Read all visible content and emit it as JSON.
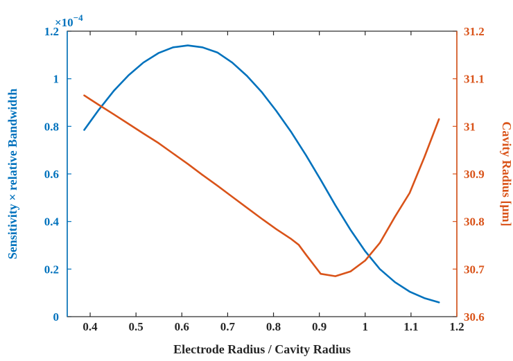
{
  "chart_data": {
    "type": "line",
    "xlabel": "Electrode Radius / Cavity Radius",
    "ylabel_left": "Sensitivity × relative Bandwidth",
    "ylabel_right": "Cavity Radius [μm]",
    "left_exponent": {
      "base": "×10",
      "power": "−4"
    },
    "xlim": [
      0.35,
      1.2
    ],
    "ylim_left": [
      0,
      1.2
    ],
    "ylim_right": [
      30.6,
      31.2
    ],
    "x_ticks": [
      "0.4",
      "0.5",
      "0.6",
      "0.7",
      "0.8",
      "0.9",
      "1",
      "1.1",
      "1.2"
    ],
    "left_ticks": [
      "0",
      "0.2",
      "0.4",
      "0.6",
      "0.8",
      "1",
      "1.2"
    ],
    "right_ticks": [
      "30.6",
      "30.7",
      "30.8",
      "30.9",
      "31",
      "31.1",
      "31.2"
    ],
    "grid": false,
    "colors": {
      "left": "#0072BD",
      "right": "#D95319"
    },
    "series": [
      {
        "axis": "left",
        "color": "#0072BD",
        "x": [
          0.387,
          0.419,
          0.452,
          0.484,
          0.516,
          0.549,
          0.581,
          0.613,
          0.645,
          0.678,
          0.71,
          0.742,
          0.774,
          0.806,
          0.839,
          0.871,
          0.903,
          0.935,
          0.968,
          1.0,
          1.032,
          1.065,
          1.097,
          1.129,
          1.161
        ],
        "values": [
          0.785,
          0.87,
          0.95,
          1.015,
          1.068,
          1.108,
          1.132,
          1.14,
          1.132,
          1.11,
          1.068,
          1.012,
          0.945,
          0.865,
          0.775,
          0.678,
          0.575,
          0.468,
          0.365,
          0.275,
          0.2,
          0.145,
          0.105,
          0.078,
          0.06
        ]
      },
      {
        "axis": "right",
        "color": "#D95319",
        "x": [
          0.387,
          0.419,
          0.452,
          0.484,
          0.516,
          0.549,
          0.581,
          0.613,
          0.645,
          0.678,
          0.71,
          0.742,
          0.774,
          0.806,
          0.839,
          0.855,
          0.871,
          0.903,
          0.935,
          0.968,
          1.0,
          1.032,
          1.065,
          1.097,
          1.129,
          1.161
        ],
        "values": [
          31.065,
          31.045,
          31.025,
          31.005,
          30.985,
          30.965,
          30.943,
          30.921,
          30.898,
          30.875,
          30.852,
          30.829,
          30.806,
          30.784,
          30.763,
          30.751,
          30.73,
          30.69,
          30.685,
          30.695,
          30.718,
          30.755,
          30.81,
          30.86,
          30.935,
          31.015
        ]
      }
    ]
  }
}
